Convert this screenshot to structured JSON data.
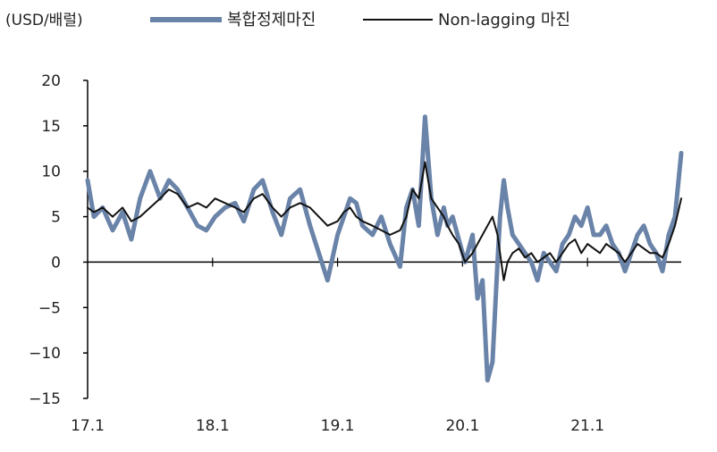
{
  "chart_data": {
    "type": "line",
    "unit_label": "(USD/배럴)",
    "legend_position": "top",
    "grid": false,
    "ylim": [
      -15,
      20
    ],
    "yticks": [
      20,
      15,
      10,
      5,
      0,
      -5,
      -10,
      -15
    ],
    "x_categories": [
      "17.1",
      "18.1",
      "19.1",
      "20.1",
      "21.1"
    ],
    "x_range": [
      2017.0,
      2021.75
    ],
    "series": [
      {
        "name": "복합정제마진",
        "color": "#6a83a8",
        "x": [
          2017.0,
          2017.05,
          2017.12,
          2017.2,
          2017.28,
          2017.35,
          2017.42,
          2017.5,
          2017.58,
          2017.65,
          2017.72,
          2017.8,
          2017.88,
          2017.95,
          2018.02,
          2018.1,
          2018.18,
          2018.25,
          2018.33,
          2018.4,
          2018.48,
          2018.55,
          2018.62,
          2018.7,
          2018.78,
          2018.85,
          2018.92,
          2019.0,
          2019.05,
          2019.1,
          2019.15,
          2019.2,
          2019.28,
          2019.35,
          2019.42,
          2019.5,
          2019.55,
          2019.6,
          2019.65,
          2019.7,
          2019.75,
          2019.8,
          2019.85,
          2019.88,
          2019.92,
          2019.97,
          2020.02,
          2020.08,
          2020.12,
          2020.16,
          2020.2,
          2020.24,
          2020.28,
          2020.3,
          2020.33,
          2020.36,
          2020.4,
          2020.45,
          2020.5,
          2020.55,
          2020.6,
          2020.65,
          2020.7,
          2020.75,
          2020.8,
          2020.85,
          2020.9,
          2020.95,
          2021.0,
          2021.05,
          2021.1,
          2021.15,
          2021.2,
          2021.25,
          2021.3,
          2021.35,
          2021.4,
          2021.45,
          2021.5,
          2021.55,
          2021.6,
          2021.65,
          2021.7,
          2021.75
        ],
        "values": [
          9,
          5,
          6,
          3.5,
          5.5,
          2.5,
          7,
          10,
          7,
          9,
          8,
          6,
          4,
          3.5,
          5,
          6,
          6.5,
          4.5,
          8,
          9,
          5.5,
          3,
          7,
          8,
          4,
          1,
          -2,
          3,
          5,
          7,
          6.5,
          4,
          3,
          5,
          2,
          -0.5,
          6,
          8,
          4,
          16,
          7,
          3,
          6,
          4,
          5,
          2.5,
          0,
          3,
          -4,
          -2,
          -13,
          -11,
          0,
          5,
          9,
          6,
          3,
          2,
          1,
          0,
          -2,
          1,
          0,
          -1,
          2,
          3,
          5,
          4,
          6,
          3,
          3,
          4,
          2,
          1,
          -1,
          1,
          3,
          4,
          2,
          1,
          -1,
          3,
          5,
          12
        ],
        "stroke_width": 5
      },
      {
        "name": "Non-lagging 마진",
        "color": "#111111",
        "x": [
          2017.0,
          2017.05,
          2017.12,
          2017.2,
          2017.28,
          2017.35,
          2017.42,
          2017.5,
          2017.58,
          2017.65,
          2017.72,
          2017.8,
          2017.88,
          2017.95,
          2018.02,
          2018.1,
          2018.18,
          2018.25,
          2018.33,
          2018.4,
          2018.48,
          2018.55,
          2018.62,
          2018.7,
          2018.78,
          2018.85,
          2018.92,
          2019.0,
          2019.05,
          2019.1,
          2019.15,
          2019.2,
          2019.28,
          2019.35,
          2019.42,
          2019.5,
          2019.55,
          2019.6,
          2019.65,
          2019.7,
          2019.75,
          2019.8,
          2019.85,
          2019.88,
          2019.92,
          2019.97,
          2020.02,
          2020.08,
          2020.12,
          2020.16,
          2020.2,
          2020.24,
          2020.28,
          2020.3,
          2020.33,
          2020.36,
          2020.4,
          2020.45,
          2020.5,
          2020.55,
          2020.6,
          2020.65,
          2020.7,
          2020.75,
          2020.8,
          2020.85,
          2020.9,
          2020.95,
          2021.0,
          2021.05,
          2021.1,
          2021.15,
          2021.2,
          2021.25,
          2021.3,
          2021.35,
          2021.4,
          2021.45,
          2021.5,
          2021.55,
          2021.6,
          2021.65,
          2021.7,
          2021.75
        ],
        "values": [
          6,
          5.5,
          6,
          5,
          6,
          4.5,
          5,
          6,
          7,
          8,
          7.5,
          6,
          6.5,
          6,
          7,
          6.5,
          6,
          5.5,
          7,
          7.5,
          6,
          5,
          6,
          6.5,
          6,
          5,
          4,
          4.5,
          5.5,
          6,
          5,
          4.5,
          4,
          3.5,
          3,
          3.5,
          5,
          8,
          7,
          11,
          7,
          6,
          5,
          4,
          3,
          2,
          0,
          1,
          2,
          3,
          4,
          5,
          3,
          1,
          -2,
          0,
          1,
          1.5,
          0.5,
          1,
          0,
          0.5,
          1,
          0,
          1,
          2,
          2.5,
          1,
          2,
          1.5,
          1,
          2,
          1.5,
          1,
          0,
          1,
          2,
          1.5,
          1,
          1,
          0.5,
          2,
          4,
          7
        ],
        "stroke_width": 2
      }
    ]
  }
}
